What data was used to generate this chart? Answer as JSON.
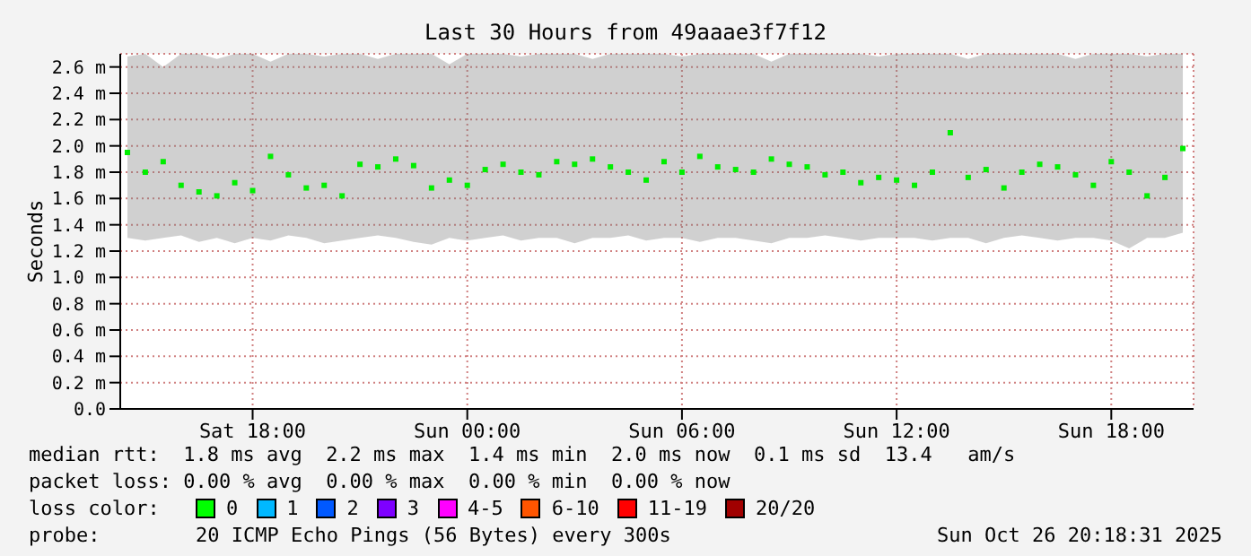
{
  "chart_data": {
    "type": "scatter",
    "title": "Last 30 Hours from 49aaae3f7f12",
    "ylabel": "Seconds",
    "x": [
      "2025-10-25T14:30",
      "2025-10-25T15:00",
      "2025-10-25T15:30",
      "2025-10-25T16:00",
      "2025-10-25T16:30",
      "2025-10-25T17:00",
      "2025-10-25T17:30",
      "2025-10-25T18:00",
      "2025-10-25T18:30",
      "2025-10-25T19:00",
      "2025-10-25T19:30",
      "2025-10-25T20:00",
      "2025-10-25T20:30",
      "2025-10-25T21:00",
      "2025-10-25T21:30",
      "2025-10-25T22:00",
      "2025-10-25T22:30",
      "2025-10-25T23:00",
      "2025-10-25T23:30",
      "2025-10-26T00:00",
      "2025-10-26T00:30",
      "2025-10-26T01:00",
      "2025-10-26T01:30",
      "2025-10-26T02:00",
      "2025-10-26T02:30",
      "2025-10-26T03:00",
      "2025-10-26T03:30",
      "2025-10-26T04:00",
      "2025-10-26T04:30",
      "2025-10-26T05:00",
      "2025-10-26T05:30",
      "2025-10-26T06:00",
      "2025-10-26T06:30",
      "2025-10-26T07:00",
      "2025-10-26T07:30",
      "2025-10-26T08:00",
      "2025-10-26T08:30",
      "2025-10-26T09:00",
      "2025-10-26T09:30",
      "2025-10-26T10:00",
      "2025-10-26T10:30",
      "2025-10-26T11:00",
      "2025-10-26T11:30",
      "2025-10-26T12:00",
      "2025-10-26T12:30",
      "2025-10-26T13:00",
      "2025-10-26T13:30",
      "2025-10-26T14:00",
      "2025-10-26T14:30",
      "2025-10-26T15:00",
      "2025-10-26T15:30",
      "2025-10-26T16:00",
      "2025-10-26T16:30",
      "2025-10-26T17:00",
      "2025-10-26T17:30",
      "2025-10-26T18:00",
      "2025-10-26T18:30",
      "2025-10-26T19:00",
      "2025-10-26T19:30",
      "2025-10-26T20:00"
    ],
    "series": [
      {
        "color": "#00ee00",
        "values": [
          1.95,
          1.8,
          1.88,
          1.7,
          1.65,
          1.62,
          1.72,
          1.66,
          1.92,
          1.78,
          1.68,
          1.7,
          1.62,
          1.86,
          1.84,
          1.9,
          1.85,
          1.68,
          1.74,
          1.7,
          1.82,
          1.86,
          1.8,
          1.78,
          1.88,
          1.86,
          1.9,
          1.84,
          1.8,
          1.74,
          1.88,
          1.8,
          1.92,
          1.84,
          1.82,
          1.8,
          1.9,
          1.86,
          1.84,
          1.78,
          1.8,
          1.72,
          1.76,
          1.74,
          1.7,
          1.8,
          2.1,
          1.76,
          1.82,
          1.68,
          1.8,
          1.86,
          1.84,
          1.78,
          1.7,
          1.88,
          1.8,
          1.62,
          1.76,
          1.98
        ],
        "lower": [
          1.3,
          1.28,
          1.3,
          1.32,
          1.27,
          1.3,
          1.26,
          1.3,
          1.28,
          1.32,
          1.3,
          1.26,
          1.28,
          1.3,
          1.32,
          1.3,
          1.27,
          1.25,
          1.3,
          1.28,
          1.3,
          1.32,
          1.28,
          1.3,
          1.3,
          1.26,
          1.3,
          1.3,
          1.32,
          1.28,
          1.3,
          1.3,
          1.27,
          1.3,
          1.3,
          1.28,
          1.26,
          1.3,
          1.3,
          1.32,
          1.3,
          1.28,
          1.3,
          1.3,
          1.3,
          1.28,
          1.3,
          1.3,
          1.26,
          1.3,
          1.32,
          1.3,
          1.28,
          1.3,
          1.3,
          1.28,
          1.22,
          1.3,
          1.3,
          1.34
        ],
        "upper": [
          2.68,
          2.7,
          2.6,
          2.7,
          2.7,
          2.66,
          2.7,
          2.7,
          2.64,
          2.7,
          2.7,
          2.68,
          2.7,
          2.7,
          2.66,
          2.7,
          2.7,
          2.7,
          2.62,
          2.7,
          2.7,
          2.7,
          2.68,
          2.7,
          2.7,
          2.7,
          2.66,
          2.7,
          2.7,
          2.7,
          2.7,
          2.68,
          2.7,
          2.7,
          2.7,
          2.7,
          2.64,
          2.7,
          2.7,
          2.7,
          2.7,
          2.7,
          2.68,
          2.7,
          2.7,
          2.7,
          2.7,
          2.66,
          2.7,
          2.7,
          2.7,
          2.7,
          2.7,
          2.66,
          2.7,
          2.7,
          2.7,
          2.68,
          2.7,
          2.7
        ]
      }
    ],
    "xlim": [
      "2025-10-25T14:18",
      "2025-10-26T20:18"
    ],
    "xticks": [
      {
        "value": "2025-10-25T18:00",
        "label": "Sat 18:00"
      },
      {
        "value": "2025-10-26T00:00",
        "label": "Sun 00:00"
      },
      {
        "value": "2025-10-26T06:00",
        "label": "Sun 06:00"
      },
      {
        "value": "2025-10-26T12:00",
        "label": "Sun 12:00"
      },
      {
        "value": "2025-10-26T18:00",
        "label": "Sun 18:00"
      }
    ],
    "ylim": [
      0,
      2.7
    ],
    "yticks": [
      {
        "value": 0,
        "label": "0.0"
      },
      {
        "value": 0.2,
        "label": "0.2 m"
      },
      {
        "value": 0.4,
        "label": "0.4 m"
      },
      {
        "value": 0.6,
        "label": "0.6 m"
      },
      {
        "value": 0.8,
        "label": "0.8 m"
      },
      {
        "value": 1.0,
        "label": "1.0 m"
      },
      {
        "value": 1.2,
        "label": "1.2 m"
      },
      {
        "value": 1.4,
        "label": "1.4 m"
      },
      {
        "value": 1.6,
        "label": "1.6 m"
      },
      {
        "value": 1.8,
        "label": "1.8 m"
      },
      {
        "value": 2.0,
        "label": "2.0 m"
      },
      {
        "value": 2.2,
        "label": "2.2 m"
      },
      {
        "value": 2.4,
        "label": "2.4 m"
      },
      {
        "value": 2.6,
        "label": "2.6 m"
      }
    ],
    "grid": true,
    "marker": "square",
    "annotations": [
      "median rtt:  1.8 ms avg  2.2 ms max  1.4 ms min  2.0 ms now  0.1 ms sd  13.4   am/s",
      "packet loss: 0.00 % avg  0.00 % max  0.00 % min  0.00 % now",
      "loss color:",
      "0",
      "1",
      "2",
      "3",
      "4-5",
      "6-10",
      "11-19",
      "20/20",
      "probe:",
      "20 ICMP Echo Pings (56 Bytes) every 300s",
      "Sun Oct 26 20:18:31 2025"
    ]
  }
}
